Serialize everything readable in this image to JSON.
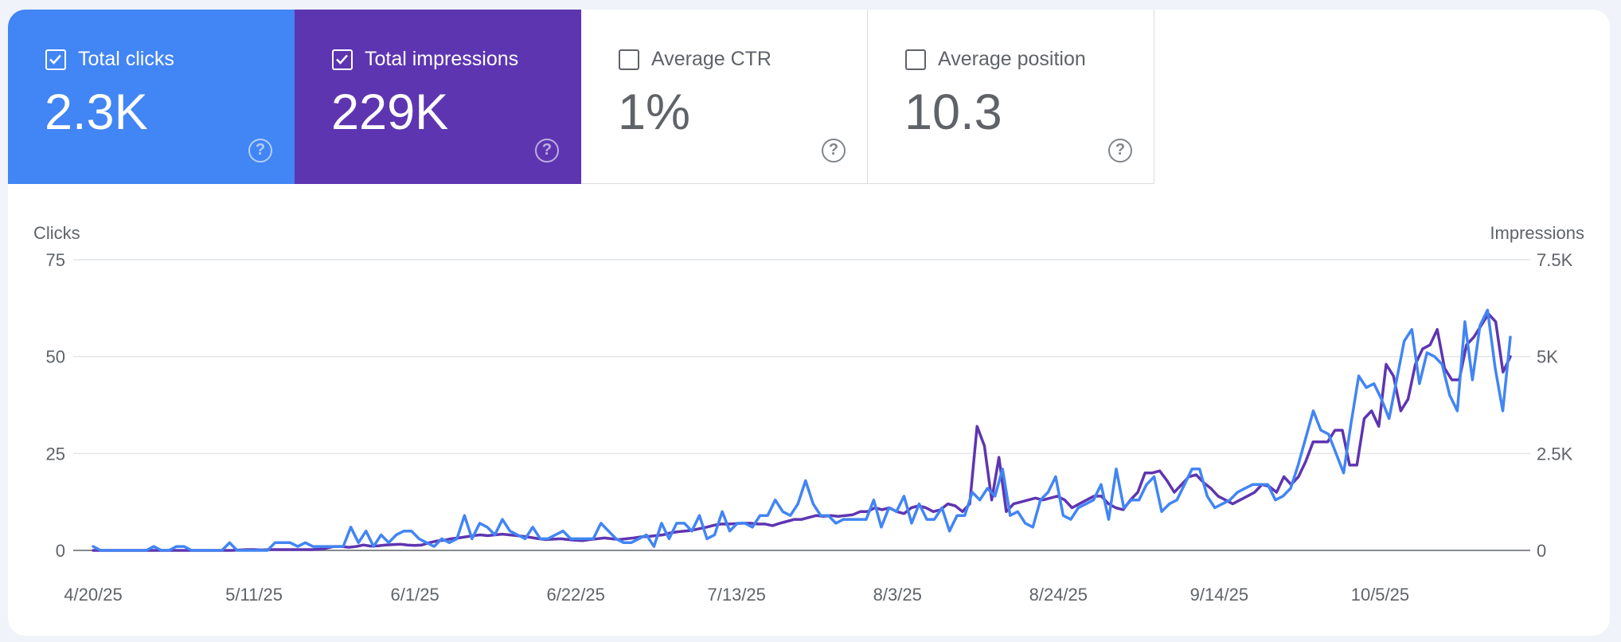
{
  "metrics": [
    {
      "label": "Total clicks",
      "value": "2.3K",
      "checked": true,
      "color": "#4285f4"
    },
    {
      "label": "Total impressions",
      "value": "229K",
      "checked": true,
      "color": "#5e35b1"
    },
    {
      "label": "Average CTR",
      "value": "1%",
      "checked": false,
      "color": "#ffffff"
    },
    {
      "label": "Average position",
      "value": "10.3",
      "checked": false,
      "color": "#ffffff"
    }
  ],
  "help_glyph": "?",
  "chart_data": {
    "type": "line",
    "ylabel": "Clicks",
    "y2label": "Impressions",
    "ylim": [
      0,
      75
    ],
    "y2lim": [
      0,
      7500
    ],
    "y_ticks": [
      0,
      25,
      50,
      75
    ],
    "y2_ticks": [
      "0",
      "2.5K",
      "5K",
      "7.5K"
    ],
    "x_ticks": [
      {
        "label": "4/20/25",
        "day": 0
      },
      {
        "label": "5/11/25",
        "day": 21
      },
      {
        "label": "6/1/25",
        "day": 42
      },
      {
        "label": "6/22/25",
        "day": 63
      },
      {
        "label": "7/13/25",
        "day": 84
      },
      {
        "label": "8/3/25",
        "day": 105
      },
      {
        "label": "8/24/25",
        "day": 126
      },
      {
        "label": "9/14/25",
        "day": 147
      },
      {
        "label": "10/5/25",
        "day": 168
      }
    ],
    "series": [
      {
        "name": "Clicks",
        "axis": "left",
        "color": "#4285f4",
        "values": [
          1,
          0,
          0,
          0,
          0,
          0,
          0,
          0,
          1,
          0,
          0,
          1,
          1,
          0,
          0,
          0,
          0,
          0,
          2,
          0,
          0,
          0,
          0,
          0,
          2,
          2,
          2,
          1,
          2,
          1,
          1,
          1,
          1,
          1,
          6,
          2,
          5,
          1,
          4,
          2,
          4,
          5,
          5,
          3,
          2,
          1,
          3,
          2,
          3,
          9,
          3,
          7,
          6,
          4,
          8,
          5,
          4,
          3,
          6,
          3,
          3,
          4,
          5,
          3,
          3,
          3,
          3,
          7,
          5,
          3,
          2,
          2,
          3,
          4,
          1,
          7,
          3,
          7,
          7,
          5,
          9,
          3,
          4,
          10,
          5,
          7,
          7,
          6,
          9,
          9,
          13,
          10,
          9,
          12,
          18,
          12,
          9,
          9,
          7,
          8,
          8,
          8,
          8,
          13,
          6,
          11,
          10,
          14,
          7,
          12,
          8,
          8,
          11,
          5,
          9,
          9,
          15,
          13,
          16,
          14,
          21,
          9,
          10,
          7,
          6,
          13,
          15,
          19,
          9,
          8,
          11,
          12,
          13,
          17,
          8,
          21,
          11,
          13,
          13,
          17,
          19,
          10,
          12,
          13,
          17,
          21,
          21,
          14,
          11,
          12,
          13,
          15,
          16,
          17,
          17,
          17,
          13,
          14,
          16,
          22,
          29,
          36,
          31,
          30,
          25,
          20,
          33,
          45,
          42,
          43,
          39,
          34,
          44,
          54,
          57,
          43,
          51,
          50,
          48,
          40,
          36,
          59,
          44,
          58,
          62,
          47,
          36,
          55
        ],
        "end_day": 185
      },
      {
        "name": "Impressions",
        "axis": "right",
        "color": "#5e35b1",
        "values": [
          0,
          0,
          0,
          0,
          0,
          0,
          0,
          0,
          0,
          0,
          0,
          0,
          0,
          0,
          0,
          0,
          0,
          0,
          0,
          0,
          10,
          20,
          20,
          10,
          20,
          20,
          20,
          20,
          20,
          20,
          20,
          30,
          60,
          100,
          100,
          80,
          100,
          140,
          110,
          120,
          140,
          150,
          160,
          140,
          130,
          140,
          200,
          240,
          260,
          300,
          320,
          350,
          380,
          400,
          380,
          400,
          420,
          400,
          380,
          360,
          330,
          300,
          280,
          290,
          300,
          280,
          260,
          250,
          280,
          300,
          320,
          300,
          280,
          300,
          320,
          350,
          360,
          380,
          400,
          450,
          480,
          500,
          520,
          560,
          600,
          650,
          680,
          680,
          690,
          700,
          700,
          680,
          680,
          640,
          700,
          750,
          800,
          800,
          850,
          900,
          880,
          900,
          880,
          900,
          920,
          1000,
          1000,
          1100,
          1050,
          1100,
          1000,
          950,
          1100,
          1150,
          1100,
          1000,
          1050,
          1200,
          1150,
          1000,
          1200,
          3200,
          2700,
          1300,
          2400,
          1000,
          1200,
          1250,
          1300,
          1350,
          1300,
          1350,
          1400,
          1300,
          1100,
          1200,
          1300,
          1400,
          1400,
          1200,
          1100,
          1050,
          1300,
          1500,
          2000,
          2000,
          2050,
          1800,
          1500,
          1700,
          1900,
          1950,
          1750,
          1600,
          1400,
          1300,
          1200,
          1300,
          1400,
          1500,
          1700,
          1650,
          1500,
          1900,
          1700,
          1900,
          2300,
          2800,
          2800,
          2800,
          3100,
          3100,
          2200,
          2200,
          3400,
          3600,
          3200,
          4800,
          4500,
          3600,
          3900,
          4800,
          5200,
          5300,
          5700,
          4700,
          4400,
          4400,
          5300,
          5500,
          5800,
          6100,
          5900,
          4600,
          5000
        ],
        "end_day": 185
      }
    ]
  }
}
